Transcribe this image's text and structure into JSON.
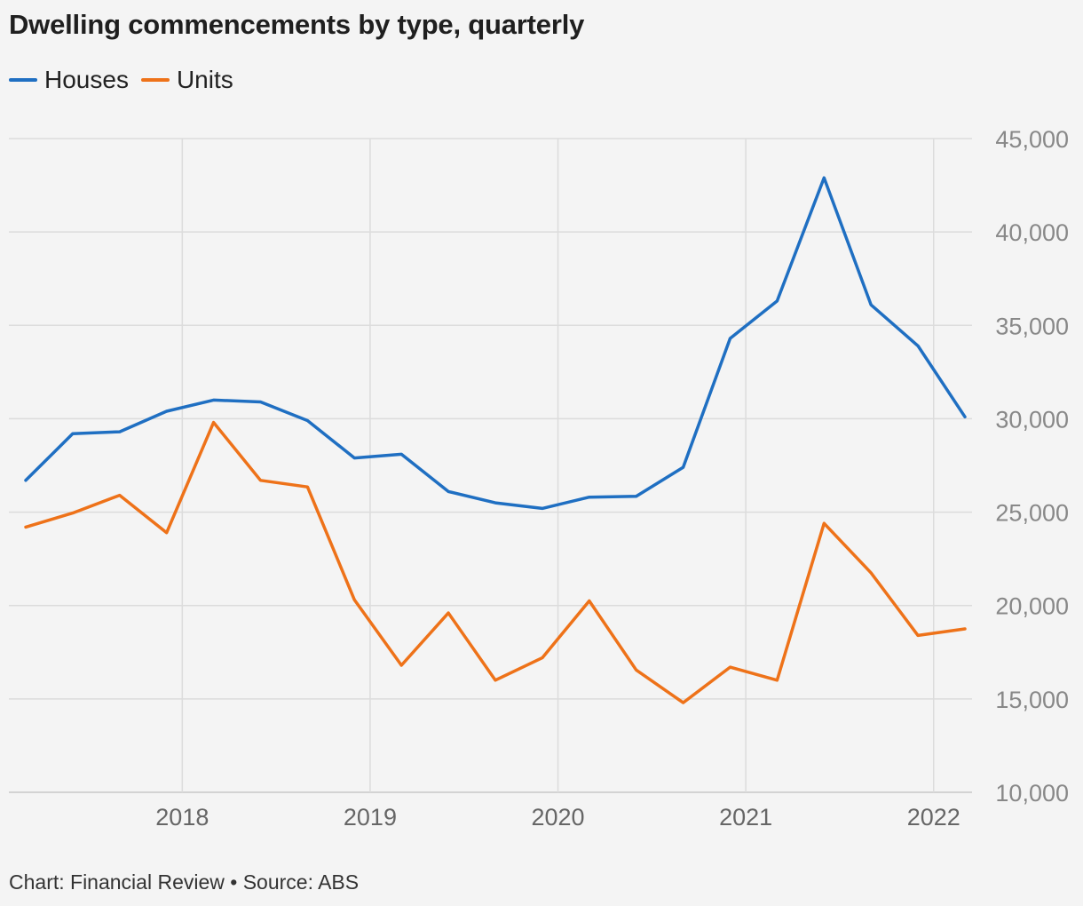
{
  "header": {
    "title": "Dwelling commencements by type, quarterly"
  },
  "legend": [
    {
      "label": "Houses",
      "color": "#1f6fc2"
    },
    {
      "label": "Units",
      "color": "#ee7219"
    }
  ],
  "footer": {
    "source": "Chart: Financial Review • Source: ABS"
  },
  "colors": {
    "background": "#f4f4f4",
    "grid": "#dcdcdc",
    "axis_text": "#888888",
    "houses": "#1f6fc2",
    "units": "#ee7219"
  },
  "chart_data": {
    "type": "line",
    "title": "Dwelling commencements by type, quarterly",
    "xlabel": "",
    "ylabel": "",
    "x_ticks": [
      "2018",
      "2019",
      "2020",
      "2021",
      "2022"
    ],
    "y_ticks": [
      "10,000",
      "15,000",
      "20,000",
      "25,000",
      "30,000",
      "35,000",
      "40,000",
      "45,000"
    ],
    "ylim": [
      10000,
      45000
    ],
    "x_range": [
      "2017-03",
      "2022-03"
    ],
    "y_axis_side": "right",
    "grid": true,
    "legend_position": "top-left",
    "x": [
      "2017-03",
      "2017-06",
      "2017-09",
      "2017-12",
      "2018-03",
      "2018-06",
      "2018-09",
      "2018-12",
      "2019-03",
      "2019-06",
      "2019-09",
      "2019-12",
      "2020-03",
      "2020-06",
      "2020-09",
      "2020-12",
      "2021-03",
      "2021-06",
      "2021-09",
      "2021-12",
      "2022-03"
    ],
    "series": [
      {
        "name": "Houses",
        "color": "#1f6fc2",
        "values": [
          26700,
          29200,
          29300,
          30400,
          31000,
          30900,
          29900,
          27900,
          28100,
          26100,
          25500,
          25200,
          25800,
          25850,
          27400,
          34300,
          36300,
          42900,
          36100,
          33900,
          30100
        ]
      },
      {
        "name": "Units",
        "color": "#ee7219",
        "values": [
          24200,
          24950,
          25900,
          23900,
          29800,
          26700,
          26350,
          20300,
          16800,
          19600,
          16000,
          17200,
          20250,
          16550,
          14800,
          16700,
          16000,
          24400,
          21750,
          18400,
          18750
        ]
      }
    ]
  }
}
